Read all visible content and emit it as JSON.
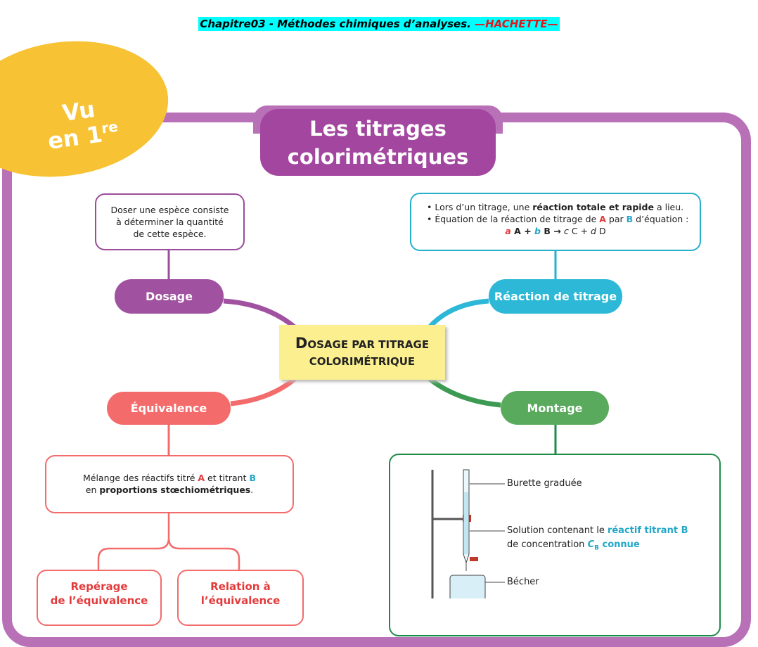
{
  "header": {
    "title": "Chapitre03 - Méthodes chimiques d’analyses.",
    "publisher": "—HACHETTE—"
  },
  "badge": {
    "line1": "Vu",
    "line2": "en 1",
    "sup": "re"
  },
  "main_title": [
    "Les titrages",
    "colorimétriques"
  ],
  "center": [
    "DOSAGE PAR TITRAGE",
    "COLORIMÉTRIQUE"
  ],
  "dosage": {
    "label": "Dosage",
    "note": [
      "Doser une espèce consiste",
      "à déterminer la quantité",
      "de cette espèce."
    ]
  },
  "reaction": {
    "label": "Réaction de titrage",
    "line1": [
      "• Lors d’un titrage, une ",
      "réaction totale et rapide",
      " a lieu."
    ],
    "line2": [
      "• Équation de la réaction de titrage de ",
      "A",
      " par ",
      "B",
      " d’équation :"
    ],
    "equation": [
      "a",
      " A + ",
      "b",
      " B → ",
      "c",
      " C + ",
      "d",
      " D"
    ]
  },
  "equivalence": {
    "label": "Équivalence",
    "line1": [
      "Mélange des réactifs titré ",
      "A",
      " et titrant ",
      "B"
    ],
    "line2": [
      "en ",
      "proportions stœchiométriques",
      "."
    ],
    "children": [
      [
        "Repérage",
        "de l’équivalence"
      ],
      [
        "Relation à",
        "l’équivalence"
      ]
    ]
  },
  "montage": {
    "label": "Montage",
    "burette": "Burette graduée",
    "solution1": [
      "Solution contenant le ",
      "réactif titrant B"
    ],
    "solution2": [
      "de concentration ",
      "C",
      "B",
      " connue"
    ],
    "becher": "Bécher"
  }
}
